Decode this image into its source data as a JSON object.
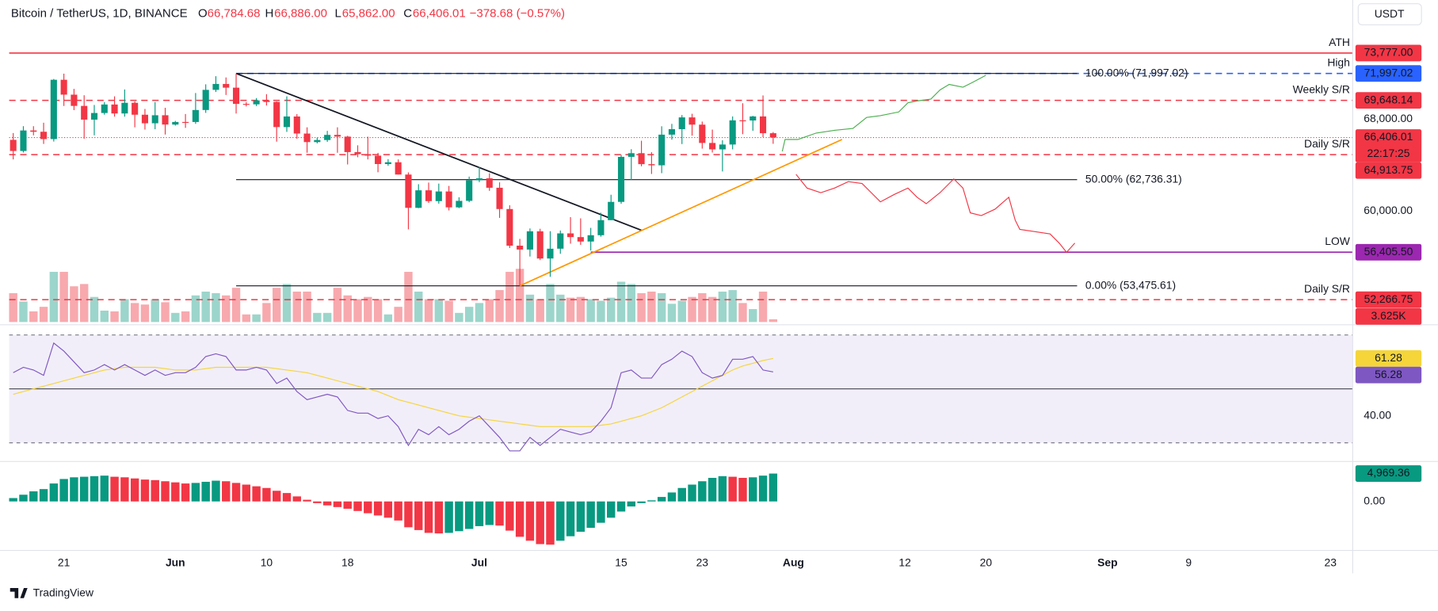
{
  "chart_data": {
    "type": "candlestick",
    "title": "Bitcoin / TetherUS, 1D, BINANCE",
    "header": [
      {
        "key": "O",
        "value": "66,784.68"
      },
      {
        "key": "H",
        "value": "66,886.00"
      },
      {
        "key": "L",
        "value": "65,862.00"
      },
      {
        "key": "C",
        "value": "66,406.01"
      }
    ],
    "change": "−378.68 (−0.57%)",
    "currency": "USDT",
    "brand": "TradingView",
    "up_color": "#089981",
    "down_color": "#f23645",
    "xlim": [
      -0.4,
      132.2
    ],
    "xticks": [
      {
        "value": 5,
        "label": "21"
      },
      {
        "value": 16,
        "label": "Jun"
      },
      {
        "value": 25,
        "label": "10"
      },
      {
        "value": 33,
        "label": "18"
      },
      {
        "value": 46,
        "label": "Jul"
      },
      {
        "value": 60,
        "label": "15"
      },
      {
        "value": 68,
        "label": "23"
      },
      {
        "value": 77,
        "label": "Aug"
      },
      {
        "value": 88,
        "label": "12"
      },
      {
        "value": 96,
        "label": "20"
      },
      {
        "value": 108,
        "label": "Sep"
      },
      {
        "value": 116,
        "label": "9"
      },
      {
        "value": 130,
        "label": "23"
      }
    ],
    "ylim": [
      50240,
      76160
    ],
    "yticks": [
      {
        "value": 60000,
        "label": "60,000.00"
      },
      {
        "value": 68000,
        "label": "68,000.00"
      }
    ],
    "x": [
      0,
      1,
      2,
      3,
      4,
      5,
      6,
      7,
      8,
      9,
      10,
      11,
      12,
      13,
      14,
      15,
      16,
      17,
      18,
      19,
      20,
      21,
      22,
      23,
      24,
      25,
      26,
      27,
      28,
      29,
      30,
      31,
      32,
      33,
      34,
      35,
      36,
      37,
      38,
      39,
      40,
      41,
      42,
      43,
      44,
      45,
      46,
      47,
      48,
      49,
      50,
      51,
      52,
      53,
      54,
      55,
      56,
      57,
      58,
      59,
      60,
      61,
      62,
      63,
      64,
      65,
      66,
      67,
      68,
      69,
      70,
      71,
      72,
      73,
      74,
      75
    ],
    "open": [
      66206,
      65235,
      67025,
      66913,
      66274,
      71446,
      70148,
      69166,
      67969,
      68549,
      69290,
      68507,
      69436,
      68398,
      67652,
      68353,
      67540,
      67766,
      67765,
      68809,
      70567,
      71082,
      70757,
      69342,
      69305,
      69647,
      69512,
      67321,
      68243,
      66756,
      66011,
      66191,
      66640,
      66490,
      65140,
      64960,
      64828,
      64096,
      64252,
      63180,
      60277,
      61806,
      60864,
      61706,
      60319,
      60887,
      62678,
      62851,
      62029,
      60173,
      56977,
      56639,
      58232,
      55857,
      56714,
      58050,
      57725,
      57339,
      57889,
      59204,
      60797,
      64724,
      65044,
      64087,
      63987,
      66660,
      67139,
      68165,
      67532,
      65936,
      65376,
      65799,
      67907,
      67896,
      68249,
      66784.68
    ],
    "high": [
      66800,
      67400,
      67400,
      67700,
      71515,
      71979,
      70650,
      70096,
      69250,
      69500,
      70000,
      70600,
      69560,
      68900,
      69500,
      69000,
      67860,
      68460,
      70290,
      71050,
      71758,
      71650,
      71997.02,
      69500,
      69850,
      70190,
      69560,
      69999,
      68450,
      67300,
      66400,
      66990,
      67300,
      66560,
      65730,
      66480,
      65070,
      64525,
      64500,
      63370,
      62340,
      62480,
      62390,
      62190,
      61200,
      63000,
      63860,
      63290,
      62500,
      60500,
      57570,
      58480,
      58450,
      58240,
      58300,
      59470,
      59360,
      58530,
      59850,
      61420,
      64900,
      65390,
      66130,
      65130,
      67390,
      67600,
      68370,
      68480,
      67800,
      67100,
      66170,
      68250,
      69400,
      68300,
      70079,
      66886
    ],
    "low": [
      64500,
      65100,
      66600,
      65850,
      66060,
      69160,
      68800,
      66300,
      66600,
      68400,
      68230,
      68230,
      67300,
      67100,
      67130,
      66670,
      67450,
      67250,
      67600,
      68560,
      70380,
      70120,
      68500,
      69120,
      69150,
      69200,
      66050,
      66900,
      66300,
      65080,
      65900,
      66030,
      65080,
      64060,
      64690,
      64500,
      63380,
      63940,
      63180,
      58400,
      60250,
      60710,
      60640,
      60050,
      60250,
      60770,
      62520,
      61760,
      59400,
      56770,
      53475.61,
      56030,
      55720,
      54260,
      56270,
      57150,
      57050,
      56550,
      57760,
      59200,
      60630,
      62700,
      63900,
      63230,
      63300,
      66220,
      65840,
      66570,
      65440,
      65100,
      63450,
      65380,
      66700,
      67000,
      66450,
      65862
    ],
    "close": [
      65235,
      67025,
      66913,
      66274,
      71446,
      70148,
      69166,
      67969,
      68549,
      69290,
      68507,
      69436,
      68398,
      67652,
      68353,
      67540,
      67766,
      67765,
      68809,
      70567,
      71082,
      70757,
      69342,
      69305,
      69647,
      69512,
      67321,
      68243,
      66756,
      66011,
      66191,
      66640,
      66490,
      65140,
      64960,
      64828,
      64096,
      64252,
      63180,
      60277,
      61806,
      60864,
      61706,
      60319,
      60887,
      62678,
      62851,
      62029,
      60173,
      56977,
      56639,
      58232,
      55857,
      56714,
      58050,
      57725,
      57339,
      57889,
      59204,
      60797,
      64724,
      65044,
      64087,
      63987,
      66660,
      67139,
      68165,
      67532,
      65936,
      65376,
      65799,
      67907,
      67896,
      68249,
      66784.68,
      66406.01
    ],
    "volume": {
      "up_color": "#9cd5cb",
      "down_color": "#f7a9ae",
      "values": [
        38,
        27,
        14,
        20,
        66,
        66,
        47,
        50,
        33,
        15,
        14,
        30,
        25,
        23,
        30,
        26,
        12,
        14,
        35,
        40,
        38,
        35,
        45,
        10,
        10,
        25,
        45,
        50,
        40,
        40,
        12,
        12,
        45,
        35,
        30,
        33,
        30,
        10,
        20,
        66,
        40,
        30,
        30,
        28,
        12,
        20,
        25,
        30,
        42,
        66,
        70,
        36,
        30,
        50,
        36,
        32,
        33,
        30,
        28,
        32,
        53,
        50,
        38,
        40,
        38,
        24,
        28,
        33,
        38,
        33,
        40,
        42,
        25,
        17,
        40,
        3.625
      ],
      "last_value_label": "3.625K"
    },
    "current_price": {
      "value": 66406.01,
      "label": "66,406.01",
      "countdown": "22:17:25",
      "color": "#f23645"
    },
    "levels": [
      {
        "name": "ATH",
        "value": 73777,
        "label": "73,777.00",
        "color": "#f23645",
        "tag_color": "#4caf50",
        "style": "solid"
      },
      {
        "name": "High",
        "value": 71997.02,
        "label": "71,997.02",
        "color": "#2962ff",
        "style": "dashed",
        "x_start": 22
      },
      {
        "name": "Weekly S/R",
        "value": 69648.14,
        "label": "69,648.14",
        "color": "#f23645",
        "style": "dashed"
      },
      {
        "name": "Daily S/R",
        "value": 64913.75,
        "label": "64,913.75",
        "color": "#f23645",
        "style": "dashed"
      },
      {
        "name": "LOW",
        "value": 56405.5,
        "label": "56,405.50",
        "color": "#9c27b0",
        "style": "solid",
        "x_start": 57
      },
      {
        "name": "Daily S/R",
        "value": 52266.75,
        "label": "52,266.75",
        "color": "#f23645",
        "style": "dashed"
      }
    ],
    "fib": {
      "x_start": 22,
      "x_end": 105,
      "color": "#131722",
      "levels": [
        {
          "value": 71997.02,
          "label": "100.00% (71,997.02)"
        },
        {
          "value": 62736.31,
          "label": "50.00% (62,736.31)"
        },
        {
          "value": 53475.61,
          "label": "0.00% (53,475.61)"
        }
      ]
    },
    "trendlines": [
      {
        "color": "#131722",
        "x": [
          22,
          62
        ],
        "y": [
          71997.02,
          58320
        ]
      },
      {
        "color": "#ff9800",
        "x": [
          50,
          81.8
        ],
        "y": [
          53475.61,
          66240
        ]
      }
    ],
    "rsi": {
      "ylim": [
        24.1,
        73.1
      ],
      "yticks": [
        {
          "value": 40,
          "label": "40.00"
        }
      ],
      "bands": [
        30,
        50,
        70
      ],
      "band_color": "#7e57c2",
      "series": [
        {
          "color": "#7e57c2",
          "text_color": "#ffffff",
          "values": [
            56,
            58,
            57,
            55,
            67,
            64,
            60,
            56,
            57,
            59,
            57,
            59,
            57,
            55,
            57,
            55,
            56,
            56,
            58,
            62,
            63,
            62,
            57,
            57,
            58,
            57,
            52,
            54,
            49,
            46,
            47,
            48,
            47,
            42,
            41,
            41,
            39,
            40,
            36,
            29,
            35,
            33,
            36,
            33,
            35,
            38,
            40,
            36,
            32,
            27,
            27,
            32,
            29,
            32,
            35,
            34,
            33,
            34,
            38,
            43,
            56,
            57,
            54,
            54,
            59,
            61,
            64,
            62,
            56,
            54,
            55,
            61,
            61,
            62,
            57,
            56.28
          ]
        },
        {
          "color": "#f5d53a",
          "text_color": "#131722",
          "values": [
            48,
            49,
            50,
            51,
            52,
            53,
            54,
            55,
            56,
            57,
            57.5,
            58,
            58,
            58,
            58,
            57.5,
            57,
            57,
            57,
            57.5,
            58,
            58,
            58,
            58,
            58,
            58,
            57.5,
            57,
            56.5,
            56,
            55,
            54,
            53,
            52,
            51,
            50,
            49,
            47.5,
            46,
            45,
            44,
            43,
            42,
            41,
            40,
            39.5,
            39,
            38.5,
            38,
            37.5,
            37,
            36.5,
            36,
            36,
            36,
            36,
            36,
            36,
            36.5,
            37,
            38,
            39,
            40,
            41.5,
            43,
            45,
            47,
            49,
            51,
            53,
            55,
            57,
            58.5,
            59.5,
            60.5,
            61.28
          ]
        }
      ]
    },
    "macd": {
      "ylim": [
        -8400,
        6800
      ],
      "yticks": [
        {
          "value": 0,
          "label": "0.00"
        }
      ],
      "rising_color": "#089981",
      "falling_color": "#f23645",
      "values": [
        600,
        1200,
        1800,
        2200,
        3200,
        4000,
        4300,
        4400,
        4500,
        4600,
        4400,
        4300,
        4100,
        3900,
        3800,
        3600,
        3400,
        3200,
        3300,
        3500,
        3700,
        3600,
        3300,
        3000,
        2700,
        2400,
        1900,
        1500,
        900,
        300,
        -300,
        -700,
        -1000,
        -1300,
        -1700,
        -2100,
        -2500,
        -2900,
        -3400,
        -4600,
        -5100,
        -5600,
        -5700,
        -5600,
        -5300,
        -4900,
        -4400,
        -4200,
        -4300,
        -5200,
        -6300,
        -7000,
        -7600,
        -7700,
        -7000,
        -6200,
        -5400,
        -4700,
        -3800,
        -2900,
        -1800,
        -900,
        -300,
        200,
        800,
        1600,
        2400,
        3000,
        3600,
        4200,
        4500,
        4400,
        4200,
        4300,
        4600,
        4969.36
      ],
      "last_value_label": "4,969.36"
    }
  }
}
